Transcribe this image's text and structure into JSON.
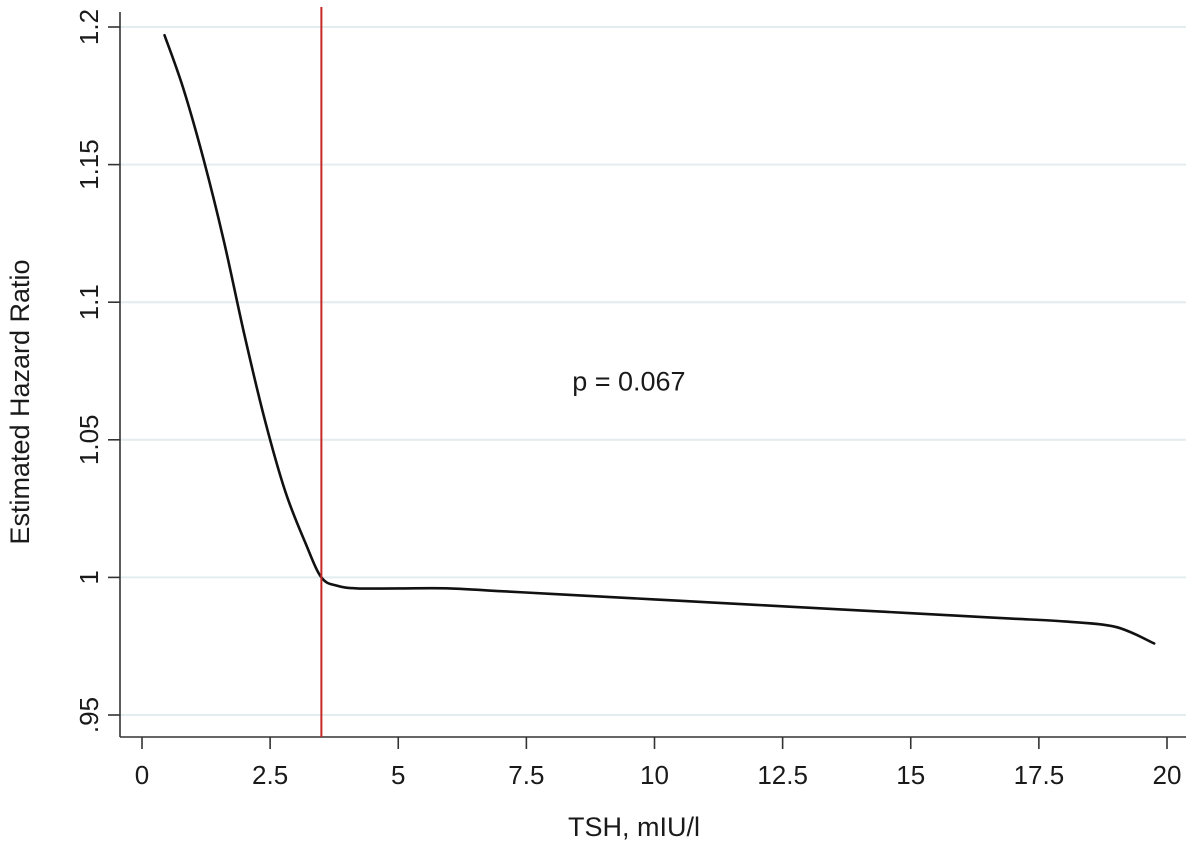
{
  "chart_data": {
    "type": "line",
    "title": "",
    "xlabel": "TSH, mIU/l",
    "ylabel": "Estimated Hazard Ratio",
    "xlim": [
      0,
      20
    ],
    "ylim": [
      0.95,
      1.2
    ],
    "x_ticks": [
      0,
      2.5,
      5,
      7.5,
      10,
      12.5,
      15,
      17.5,
      20
    ],
    "x_tick_labels": [
      "0",
      "2.5",
      "5",
      "7.5",
      "10",
      "12.5",
      "15",
      "17.5",
      "20"
    ],
    "y_ticks": [
      0.95,
      1,
      1.05,
      1.1,
      1.15,
      1.2
    ],
    "y_tick_labels": [
      ".95",
      "1",
      "1.05",
      "1.1",
      "1.15",
      "1.2"
    ],
    "grid": "horizontal",
    "series": [
      {
        "color": "#111111",
        "x": [
          0.44,
          0.8,
          1.2,
          1.6,
          2.0,
          2.4,
          2.8,
          3.2,
          3.5,
          3.8,
          4.2,
          5.0,
          6.0,
          7.0,
          8.0,
          9.0,
          10.0,
          11.0,
          12.0,
          13.0,
          14.0,
          15.0,
          16.0,
          17.0,
          18.0,
          19.0,
          19.75
        ],
        "y": [
          1.197,
          1.178,
          1.152,
          1.122,
          1.088,
          1.057,
          1.031,
          1.012,
          1.0,
          0.997,
          0.996,
          0.996,
          0.996,
          0.995,
          0.994,
          0.993,
          0.992,
          0.991,
          0.99,
          0.989,
          0.988,
          0.987,
          0.986,
          0.985,
          0.984,
          0.982,
          0.976
        ]
      }
    ],
    "reference_line": {
      "x": 3.5,
      "color": "#c62828"
    },
    "annotations": [
      {
        "text": "p = 0.067",
        "x": 9.5,
        "y": 1.068
      }
    ]
  }
}
